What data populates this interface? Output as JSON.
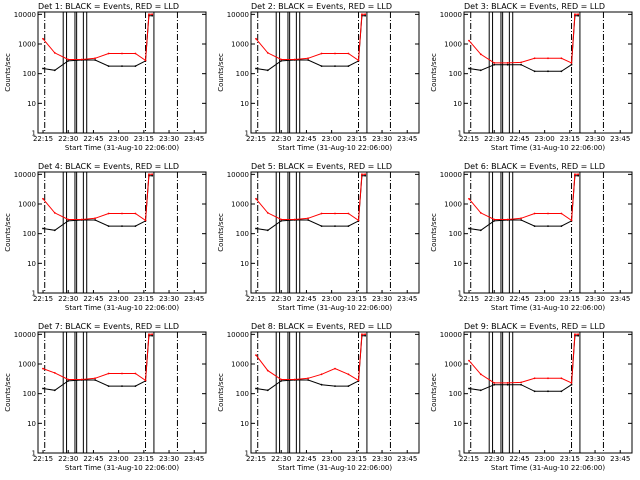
{
  "colors": {
    "events": "#000000",
    "lld": "#ff0000",
    "background": "#ffffff"
  },
  "common": {
    "xlabel": "Start Time (31-Aug-10 22:06:00)",
    "ylabel": "Counts/sec",
    "x_ticks": [
      "22:15",
      "22:30",
      "22:45",
      "23:00",
      "23:15",
      "23:30",
      "23:45"
    ],
    "y_ticks": [
      "1",
      "10",
      "100",
      "1000",
      "10000"
    ]
  },
  "chart_data": [
    {
      "type": "line",
      "title": "Det 1: BLACK = Events, RED = LLD",
      "x_minutes": [
        9,
        16,
        24,
        32,
        40,
        48,
        56,
        64,
        70,
        72,
        74
      ],
      "series": [
        {
          "name": "BLACK = Events",
          "values": [
            150,
            130,
            270,
            290,
            290,
            180,
            180,
            180,
            270,
            9000,
            9000
          ]
        },
        {
          "name": "RED = LLD",
          "values": [
            1500,
            500,
            300,
            300,
            330,
            480,
            480,
            480,
            280,
            10000,
            10000
          ]
        }
      ],
      "xlim": [
        6,
        106
      ],
      "ylim": [
        1,
        12000
      ],
      "yscale": "log"
    },
    {
      "type": "line",
      "title": "Det 2: BLACK = Events, RED = LLD",
      "x_minutes": [
        9,
        16,
        24,
        32,
        40,
        48,
        56,
        64,
        70,
        72,
        74
      ],
      "series": [
        {
          "name": "BLACK = Events",
          "values": [
            150,
            130,
            270,
            290,
            290,
            180,
            180,
            180,
            270,
            9000,
            9000
          ]
        },
        {
          "name": "RED = LLD",
          "values": [
            1500,
            500,
            300,
            300,
            330,
            480,
            480,
            480,
            280,
            10000,
            10000
          ]
        }
      ],
      "xlim": [
        6,
        106
      ],
      "ylim": [
        1,
        12000
      ],
      "yscale": "log"
    },
    {
      "type": "line",
      "title": "Det 3: BLACK = Events, RED = LLD",
      "x_minutes": [
        9,
        16,
        24,
        32,
        40,
        48,
        56,
        64,
        70,
        72,
        74
      ],
      "series": [
        {
          "name": "BLACK = Events",
          "values": [
            150,
            130,
            200,
            200,
            200,
            120,
            120,
            120,
            200,
            9000,
            9000
          ]
        },
        {
          "name": "RED = LLD",
          "values": [
            1300,
            450,
            230,
            230,
            240,
            330,
            330,
            330,
            230,
            10000,
            10000
          ]
        }
      ],
      "xlim": [
        6,
        106
      ],
      "ylim": [
        1,
        12000
      ],
      "yscale": "log"
    },
    {
      "type": "line",
      "title": "Det 4: BLACK = Events, RED = LLD",
      "x_minutes": [
        9,
        16,
        24,
        32,
        40,
        48,
        56,
        64,
        70,
        72,
        74
      ],
      "series": [
        {
          "name": "BLACK = Events",
          "values": [
            150,
            130,
            270,
            290,
            290,
            180,
            180,
            180,
            270,
            9000,
            9000
          ]
        },
        {
          "name": "RED = LLD",
          "values": [
            1500,
            500,
            300,
            300,
            330,
            480,
            480,
            480,
            280,
            10000,
            10000
          ]
        }
      ],
      "xlim": [
        6,
        106
      ],
      "ylim": [
        1,
        12000
      ],
      "yscale": "log"
    },
    {
      "type": "line",
      "title": "Det 5: BLACK = Events, RED = LLD",
      "x_minutes": [
        9,
        16,
        24,
        32,
        40,
        48,
        56,
        64,
        70,
        72,
        74
      ],
      "series": [
        {
          "name": "BLACK = Events",
          "values": [
            150,
            130,
            270,
            290,
            290,
            180,
            180,
            180,
            270,
            9000,
            9000
          ]
        },
        {
          "name": "RED = LLD",
          "values": [
            1500,
            500,
            300,
            300,
            330,
            480,
            480,
            480,
            280,
            10000,
            10000
          ]
        }
      ],
      "xlim": [
        6,
        106
      ],
      "ylim": [
        1,
        12000
      ],
      "yscale": "log"
    },
    {
      "type": "line",
      "title": "Det 6: BLACK = Events, RED = LLD",
      "x_minutes": [
        9,
        16,
        24,
        32,
        40,
        48,
        56,
        64,
        70,
        72,
        74
      ],
      "series": [
        {
          "name": "BLACK = Events",
          "values": [
            150,
            130,
            270,
            290,
            290,
            180,
            180,
            180,
            270,
            9000,
            9000
          ]
        },
        {
          "name": "RED = LLD",
          "values": [
            1500,
            500,
            300,
            300,
            330,
            480,
            480,
            480,
            280,
            10000,
            10000
          ]
        }
      ],
      "xlim": [
        6,
        106
      ],
      "ylim": [
        1,
        12000
      ],
      "yscale": "log"
    },
    {
      "type": "line",
      "title": "Det 7: BLACK = Events, RED = LLD",
      "x_minutes": [
        9,
        16,
        24,
        32,
        40,
        48,
        56,
        64,
        70,
        72,
        74
      ],
      "series": [
        {
          "name": "BLACK = Events",
          "values": [
            150,
            130,
            270,
            290,
            290,
            180,
            180,
            180,
            270,
            9000,
            9000
          ]
        },
        {
          "name": "RED = LLD",
          "values": [
            700,
            500,
            300,
            300,
            330,
            480,
            480,
            480,
            280,
            10000,
            10000
          ]
        }
      ],
      "xlim": [
        6,
        106
      ],
      "ylim": [
        1,
        12000
      ],
      "yscale": "log"
    },
    {
      "type": "line",
      "title": "Det 8: BLACK = Events, RED = LLD",
      "x_minutes": [
        9,
        16,
        24,
        32,
        40,
        48,
        56,
        64,
        70,
        72,
        74
      ],
      "series": [
        {
          "name": "BLACK = Events",
          "values": [
            150,
            130,
            270,
            290,
            290,
            200,
            180,
            180,
            270,
            9000,
            9000
          ]
        },
        {
          "name": "RED = LLD",
          "values": [
            2000,
            600,
            300,
            300,
            330,
            450,
            700,
            450,
            280,
            10000,
            10000
          ]
        }
      ],
      "xlim": [
        6,
        106
      ],
      "ylim": [
        1,
        12000
      ],
      "yscale": "log"
    },
    {
      "type": "line",
      "title": "Det 9: BLACK = Events, RED = LLD",
      "x_minutes": [
        9,
        16,
        24,
        32,
        40,
        48,
        56,
        64,
        70,
        72,
        74
      ],
      "series": [
        {
          "name": "BLACK = Events",
          "values": [
            150,
            130,
            200,
            200,
            200,
            120,
            120,
            120,
            200,
            9000,
            9000
          ]
        },
        {
          "name": "RED = LLD",
          "values": [
            1300,
            450,
            230,
            230,
            240,
            330,
            330,
            330,
            230,
            10000,
            10000
          ]
        }
      ],
      "xlim": [
        6,
        106
      ],
      "ylim": [
        1,
        12000
      ],
      "yscale": "log"
    }
  ]
}
